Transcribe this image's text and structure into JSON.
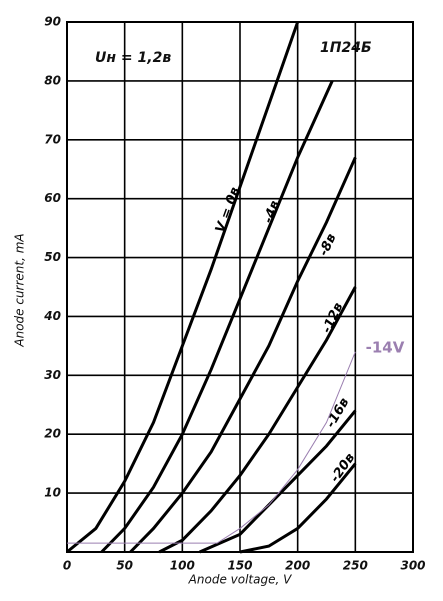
{
  "chart_data": {
    "type": "line",
    "notes": [
      "Uн = 1,2в",
      "1П24Б"
    ],
    "x_label": "Anode voltage, V",
    "y_label": "Anode current, mA",
    "xlim": [
      0,
      300
    ],
    "ylim": [
      0,
      90
    ],
    "xticks": [
      0,
      50,
      100,
      150,
      200,
      250,
      300
    ],
    "yticks": [
      10,
      20,
      30,
      40,
      50,
      60,
      70,
      80,
      90
    ],
    "grid": true,
    "series": [
      {
        "name": "V = 0в",
        "color": "#000000",
        "x": [
          0,
          25,
          50,
          75,
          100,
          125,
          150,
          175,
          200
        ],
        "values": [
          0,
          4,
          12,
          22,
          35,
          48,
          62,
          76,
          90
        ]
      },
      {
        "name": "-4в",
        "color": "#000000",
        "x": [
          30,
          50,
          75,
          100,
          125,
          150,
          175,
          200,
          230
        ],
        "values": [
          0,
          4,
          11,
          20,
          31,
          43,
          55,
          67,
          80
        ]
      },
      {
        "name": "-8в",
        "color": "#000000",
        "x": [
          55,
          75,
          100,
          125,
          150,
          175,
          200,
          225,
          250
        ],
        "values": [
          0,
          4,
          10,
          17,
          26,
          35,
          46,
          56,
          67
        ]
      },
      {
        "name": "-12в",
        "color": "#000000",
        "x": [
          80,
          100,
          125,
          150,
          175,
          200,
          225,
          250
        ],
        "values": [
          0,
          2,
          7,
          13,
          20,
          28,
          36,
          45
        ]
      },
      {
        "name": "-16в",
        "color": "#000000",
        "x": [
          115,
          150,
          175,
          200,
          225,
          250
        ],
        "values": [
          0,
          3,
          8,
          13,
          18,
          24
        ]
      },
      {
        "name": "-20в",
        "color": "#000000",
        "x": [
          150,
          175,
          200,
          225,
          250
        ],
        "values": [
          0,
          1,
          4,
          9,
          15
        ]
      },
      {
        "name": "-14V",
        "color": "#9b7fb0",
        "x": [
          0,
          130,
          150,
          175,
          200,
          225,
          250
        ],
        "values": [
          1.5,
          1.5,
          4,
          8,
          14,
          22,
          34
        ]
      }
    ]
  }
}
